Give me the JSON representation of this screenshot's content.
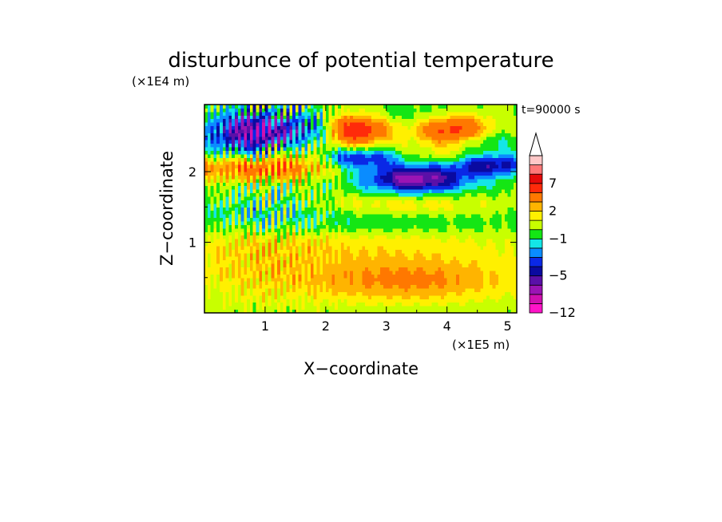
{
  "chart_data": {
    "type": "heatmap",
    "title": "disturbunce of potential temperature",
    "xlabel": "X−coordinate",
    "ylabel": "Z−coordinate",
    "x_unit": "(×1E5 m)",
    "y_unit": "(×1E4 m)",
    "time_label": "t=90000 s",
    "xlim": [
      0.0,
      5.15
    ],
    "ylim": [
      0.0,
      2.95
    ],
    "x_ticks": [
      1,
      2,
      3,
      4,
      5
    ],
    "x_tick_labels": [
      "1",
      "2",
      "3",
      "4",
      "5"
    ],
    "y_ticks": [
      1,
      2
    ],
    "y_tick_labels": [
      "1",
      "2"
    ],
    "colorbar": {
      "levels": [
        -12,
        -10,
        -8,
        -6,
        -5,
        -4,
        -3,
        -2,
        -1,
        0,
        1,
        2,
        3,
        5,
        7,
        9,
        11
      ],
      "labeled_levels": [
        -12,
        -5,
        -1,
        2,
        7
      ],
      "labels": [
        "−12",
        "−5",
        "−1",
        "2",
        "7"
      ],
      "colors": [
        "#ff14c8",
        "#d010b0",
        "#9a14b4",
        "#5a10a8",
        "#0a0aa0",
        "#0a28e6",
        "#0a8cff",
        "#14e6e6",
        "#14e614",
        "#c8ff00",
        "#fff000",
        "#ffb400",
        "#ff7800",
        "#ff2a0a",
        "#e60a0a",
        "#ff7878",
        "#ffc8c8"
      ],
      "extend": "max"
    },
    "field_summary": {
      "x_range_e5m": [
        0.0,
        5.15
      ],
      "z_range_e4m": [
        0.0,
        2.95
      ],
      "features": [
        {
          "name": "negative core",
          "x": 3.5,
          "z": 1.9,
          "value": -5
        },
        {
          "name": "negative core",
          "x": 0.9,
          "z": 2.55,
          "value": -6
        },
        {
          "name": "negative band",
          "x": 2.6,
          "z": 2.2,
          "value": -4
        },
        {
          "name": "negative band",
          "x": 4.7,
          "z": 2.1,
          "value": -4
        },
        {
          "name": "positive core",
          "x": 2.5,
          "z": 2.6,
          "value": 7
        },
        {
          "name": "positive core",
          "x": 4.1,
          "z": 2.6,
          "value": 6
        },
        {
          "name": "positive band",
          "x": 0.7,
          "z": 2.05,
          "value": 4
        },
        {
          "name": "positive layer",
          "x": 3.4,
          "z": 0.45,
          "value": 3
        },
        {
          "name": "positive layer",
          "x": 2.5,
          "z": 1.6,
          "value": 1
        }
      ]
    }
  }
}
